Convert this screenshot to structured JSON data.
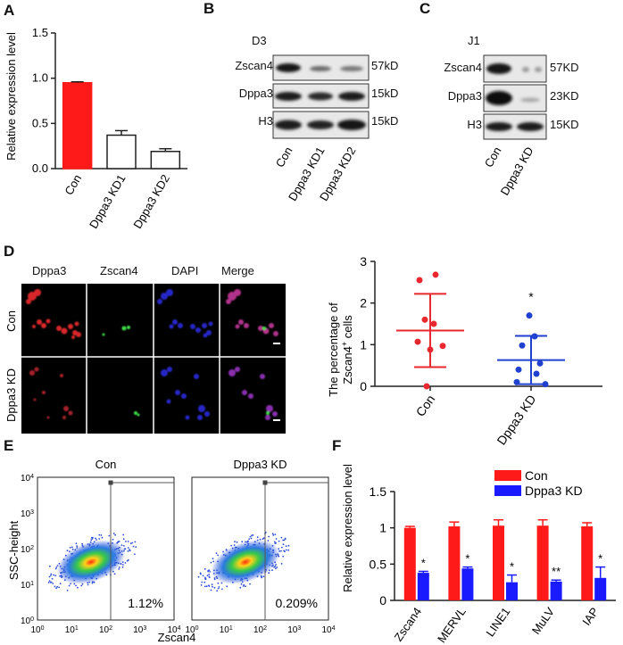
{
  "panel_letters": [
    "A",
    "B",
    "C",
    "D",
    "E",
    "F"
  ],
  "colors": {
    "red": "#ff1a1a",
    "blue": "#1a1aff",
    "axis": "#222222",
    "scatter_red": "#e8282e",
    "scatter_blue": "#2040d0"
  },
  "blotB": {
    "title": "D3",
    "rows": [
      {
        "label": "Zscan4",
        "size": "57kD"
      },
      {
        "label": "Dppa3",
        "size": "15kD"
      },
      {
        "label": "H3",
        "size": "15kD"
      }
    ],
    "lanes": [
      "Con",
      "Dppa3 KD1",
      "Dppa3 KD2"
    ]
  },
  "blotC": {
    "title": "J1",
    "rows": [
      {
        "label": "Zscan4",
        "size": "57KD"
      },
      {
        "label": "Dppa3",
        "size": "23KD"
      },
      {
        "label": "H3",
        "size": "15KD"
      }
    ],
    "lanes": [
      "Con",
      "Dppa3 KD"
    ]
  },
  "micrograph": {
    "columns": [
      "Dppa3",
      "Zscan4",
      "DAPI",
      "Merge"
    ],
    "rows": [
      "Con",
      "Dppa3 KD"
    ]
  },
  "flow": {
    "panels": [
      {
        "title": "Con",
        "percent": "1.12%"
      },
      {
        "title": "Dppa3 KD",
        "percent": "0.209%"
      }
    ],
    "ylabel": "SSC-height",
    "xlabel": "Zscan4",
    "tick_base": "10",
    "tick_exps": [
      "0",
      "1",
      "2",
      "3",
      "4"
    ]
  },
  "chart_data": [
    {
      "id": "A",
      "type": "bar",
      "categories": [
        "Con",
        "Dppa3 KD1",
        "Dppa3 KD2"
      ],
      "values": [
        0.95,
        0.37,
        0.19
      ],
      "errors": [
        0.01,
        0.05,
        0.03
      ],
      "ylabel": "Relative expression level",
      "ylim": [
        0,
        1.5
      ],
      "yticks": [
        "0.0",
        "0.5",
        "1.0",
        "1.5"
      ]
    },
    {
      "id": "D",
      "type": "scatter",
      "categories": [
        "Con",
        "Dppa3 KD"
      ],
      "points": [
        [
          2.68,
          2.55,
          1.6,
          1.5,
          1.07,
          0.97,
          0.88,
          0.0
        ],
        [
          1.7,
          1.2,
          0.98,
          0.55,
          0.4,
          0.3,
          0.1,
          0.05
        ]
      ],
      "means": [
        1.34,
        0.63
      ],
      "sd": [
        0.88,
        0.58
      ],
      "ylabel_line1": "The percentage of",
      "ylabel_line2": "Zscan4",
      "ylabel_sup": "+",
      "ylabel_end": " cells",
      "ylim": [
        0,
        3
      ],
      "yticks": [
        "0",
        "1",
        "2",
        "3"
      ],
      "annotation": "*"
    },
    {
      "id": "F",
      "type": "bar",
      "categories": [
        "Zscan4",
        "MERVL",
        "LINE1",
        "MuLV",
        "IAP"
      ],
      "series": [
        {
          "name": "Con",
          "values": [
            1.0,
            1.02,
            1.03,
            1.03,
            1.02
          ],
          "errors": [
            0.02,
            0.06,
            0.08,
            0.08,
            0.05
          ]
        },
        {
          "name": "Dppa3 KD",
          "values": [
            0.38,
            0.44,
            0.25,
            0.26,
            0.31
          ],
          "errors": [
            0.02,
            0.02,
            0.1,
            0.02,
            0.15
          ]
        }
      ],
      "significance": [
        "*",
        "*",
        "*",
        "**",
        "*"
      ],
      "ylabel": "Relative expression level",
      "ylim": [
        0,
        1.5
      ],
      "yticks": [
        "0",
        "0.5",
        "1",
        "1.5"
      ],
      "legend_position": "top-right"
    }
  ]
}
